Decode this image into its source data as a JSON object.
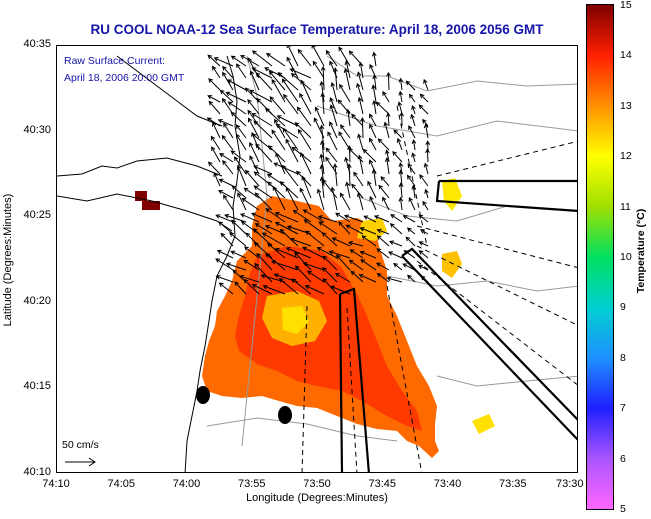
{
  "title": "RU COOL  NOAA-12  Sea Surface Temperature:  April 18, 2006 2056 GMT",
  "legend": {
    "line1": "Raw Surface Current:",
    "line2": "April 18, 2006 20:00 GMT"
  },
  "scale_label": "50 cm/s",
  "axes": {
    "xlabel": "Longitude (Degrees:Minutes)",
    "ylabel": "Latitude (Degrees:Minutes)",
    "xticks": [
      "74:10",
      "74:05",
      "74:00",
      "73:55",
      "73:50",
      "73:45",
      "73:40",
      "73:35",
      "73:30"
    ],
    "yticks": [
      "40:35",
      "40:30",
      "40:25",
      "40:20",
      "40:15",
      "40:10"
    ]
  },
  "colorbar": {
    "label": "Temperature (°C)",
    "ticks": [
      "15",
      "14",
      "13",
      "12",
      "11",
      "10",
      "9",
      "8",
      "7",
      "6",
      "5"
    ],
    "range": [
      5,
      15
    ],
    "colors": [
      "#ff66ff",
      "#aa55ff",
      "#2020ff",
      "#1e90ff",
      "#00d0d0",
      "#00e060",
      "#a0e000",
      "#ffff00",
      "#ff9000",
      "#ff2000",
      "#800000"
    ]
  }
}
